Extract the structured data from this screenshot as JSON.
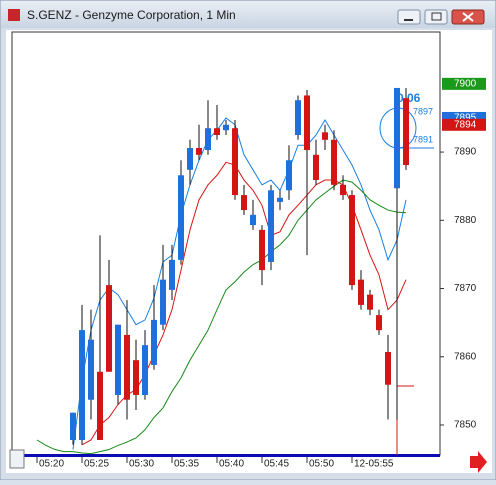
{
  "window": {
    "title": "S.GENZ - Genzyme Corporation, 1 Min"
  },
  "chart_data": {
    "type": "candlestick",
    "categories": [
      "05:20",
      null,
      null,
      null,
      null,
      "05:25",
      null,
      null,
      null,
      null,
      "05:30",
      null,
      null,
      null,
      null,
      "05:35",
      null,
      null,
      null,
      null,
      "05:40",
      null,
      null,
      null,
      null,
      "05:45",
      null,
      null,
      null,
      null,
      "05:50",
      null,
      null,
      null,
      null,
      "12-05:55",
      null,
      null,
      null,
      null,
      null,
      null
    ],
    "open": [
      null,
      null,
      null,
      null,
      7847.8,
      7847.8,
      7853.7,
      7857.8,
      7870.5,
      7854.4,
      7863.2,
      7859.5,
      7854.4,
      7858.8,
      7864.7,
      7869.8,
      7874.2,
      7887.4,
      7890.6,
      7890.3,
      7893.5,
      7893.2,
      7893.5,
      7883.7,
      7879.3,
      7878.6,
      7873.9,
      7882.7,
      7884.4,
      7892.5,
      7898.3,
      7889.6,
      7892.9,
      7891.8,
      7885.2,
      7883.7,
      7871.3,
      7869.1,
      7866.1,
      7860.7,
      7884.7,
      7897.9
    ],
    "high": [
      null,
      null,
      null,
      null,
      7851.8,
      7867.6,
      7866.9,
      7877.8,
      7874.2,
      7864.7,
      7868.3,
      7862.5,
      7863.9,
      7870.5,
      7876.4,
      7876.4,
      7888.8,
      7891.8,
      7894.0,
      7897.6,
      7896.9,
      7894.7,
      7894.7,
      7885.2,
      7883.0,
      7879.3,
      7885.2,
      7884.4,
      7891.0,
      7898.3,
      7899.1,
      7891.8,
      7894.0,
      7893.2,
      7886.6,
      7884.4,
      7872.7,
      7869.8,
      7866.9,
      7863.2,
      7899.4,
      7899.4
    ],
    "low": [
      null,
      null,
      null,
      null,
      7847.1,
      7847.1,
      7850.8,
      7847.8,
      7857.8,
      7853.0,
      7850.8,
      7852.2,
      7853.7,
      7858.1,
      7863.9,
      7868.3,
      7873.5,
      7885.2,
      7888.8,
      7889.6,
      7891.8,
      7892.5,
      7883.0,
      7880.8,
      7878.6,
      7870.5,
      7872.7,
      7881.5,
      7883.0,
      7891.8,
      7874.9,
      7885.2,
      7890.3,
      7884.4,
      7883.0,
      7869.8,
      7866.9,
      7866.1,
      7863.2,
      7850.8,
      7850.8,
      7887.4
    ],
    "close": [
      null,
      null,
      null,
      null,
      7851.8,
      7863.9,
      7862.5,
      7847.8,
      7857.8,
      7864.7,
      7853.7,
      7854.4,
      7861.7,
      7865.4,
      7871.3,
      7874.2,
      7886.6,
      7890.6,
      7889.6,
      7893.5,
      7892.5,
      7894.0,
      7883.7,
      7881.5,
      7880.8,
      7872.7,
      7884.4,
      7883.3,
      7888.8,
      7897.6,
      7890.3,
      7885.9,
      7891.8,
      7885.2,
      7883.7,
      7870.5,
      7867.6,
      7866.9,
      7863.9,
      7855.9,
      7899.4,
      7888.1
    ],
    "up_color": "#1f6fdc",
    "down_color": "#d41515",
    "series": [
      {
        "color": "#1a7fe0",
        "values": [
          null,
          null,
          null,
          null,
          7846.4,
          7856.6,
          7863.9,
          7868.3,
          7870.1,
          7869.1,
          7866.9,
          7864.7,
          7865.4,
          7868.6,
          7873.9,
          7874.9,
          7880.8,
          7885.2,
          7888.8,
          7891.8,
          7893.2,
          7895.0,
          7894.0,
          7889.6,
          7887.4,
          7885.2,
          7885.9,
          7884.4,
          7887.4,
          7891.0,
          7891.0,
          7892.5,
          7894.7,
          7892.5,
          7890.3,
          7888.1,
          7885.2,
          7881.5,
          7878.6,
          7874.2,
          7877.1,
          7883.0
        ]
      },
      {
        "color": "#d41515",
        "values": [
          null,
          null,
          null,
          null,
          null,
          7847.1,
          7847.8,
          7850.0,
          7851.1,
          7853.0,
          7854.4,
          7855.2,
          7857.4,
          7860.3,
          7863.2,
          7866.9,
          7872.7,
          7878.6,
          7883.0,
          7885.2,
          7886.6,
          7888.5,
          7888.1,
          7885.9,
          7884.4,
          7882.2,
          7877.8,
          7878.3,
          7880.8,
          7882.2,
          7883.7,
          7885.2,
          7885.9,
          7885.9,
          7885.2,
          7882.2,
          7878.6,
          7874.9,
          7872.0,
          7866.9,
          7868.3,
          7871.3
        ]
      },
      {
        "color": "#188a18",
        "values": [
          7847.8,
          7847.0,
          7846.4,
          7846.1,
          7846.1,
          7845.9,
          7845.8,
          7846.1,
          7846.4,
          7847.0,
          7847.5,
          7848.1,
          7849.3,
          7851.1,
          7852.5,
          7854.9,
          7856.9,
          7859.5,
          7861.7,
          7863.9,
          7866.9,
          7869.8,
          7871.0,
          7872.4,
          7873.5,
          7874.2,
          7875.4,
          7876.4,
          7877.8,
          7880.0,
          7881.5,
          7883.0,
          7884.0,
          7885.0,
          7885.9,
          7885.6,
          7884.4,
          7883.0,
          7882.2,
          7881.5,
          7881.2,
          7881.1
        ]
      }
    ],
    "ylim": [
      7845.6,
      7907.6
    ],
    "yticks": [
      7850,
      7860,
      7870,
      7880,
      7890
    ],
    "price_markers": [
      {
        "value": 7900,
        "color": "#1a9a1a"
      },
      {
        "value": 7895,
        "color": "#1f6fdc"
      },
      {
        "value": 7894,
        "color": "#d41515"
      }
    ],
    "annotations": [
      "0.06",
      "7897",
      "7891"
    ]
  }
}
